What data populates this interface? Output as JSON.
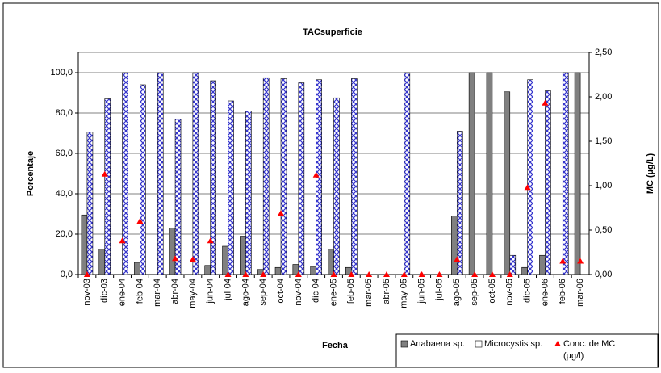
{
  "chart_data": {
    "type": "bar",
    "title": "TACsuperficie",
    "x_label": "Fecha",
    "y_label": "Porcentaje",
    "y2_label": "MC (µg/L)",
    "categories": [
      "nov-03",
      "dic-03",
      "ene-04",
      "feb-04",
      "mar-04",
      "abr-04",
      "may-04",
      "jun-04",
      "jul-04",
      "ago-04",
      "sep-04",
      "oct-04",
      "nov-04",
      "dic-04",
      "ene-05",
      "feb-05",
      "mar-05",
      "abr-05",
      "may-05",
      "jun-05",
      "jul-05",
      "ago-05",
      "sep-05",
      "oct-05",
      "nov-05",
      "dic-05",
      "ene-06",
      "feb-06",
      "mar-06"
    ],
    "series": [
      {
        "name": "Anabaena sp.",
        "color": "#808080",
        "values": [
          29.5,
          12.5,
          0,
          6,
          0,
          23,
          0,
          4.5,
          14,
          19,
          2.5,
          3.5,
          5,
          4,
          12.5,
          3.5,
          0,
          0,
          0,
          0,
          0,
          29,
          100,
          100,
          90.5,
          3.5,
          9.5,
          0,
          100
        ]
      },
      {
        "name": "Microcystis sp.",
        "color": "#3333cc",
        "values": [
          70.5,
          87,
          100,
          94,
          100,
          77,
          100,
          96,
          86,
          81,
          97.5,
          97,
          95,
          96.5,
          87.5,
          97,
          0,
          0,
          100,
          0,
          0,
          71,
          0,
          0,
          9.5,
          96.5,
          91,
          100,
          0
        ]
      },
      {
        "name": "Conc. de MC (µg/l)",
        "color": "#ff0000",
        "type": "scatter",
        "axis": "y2",
        "values": [
          0,
          1.13,
          0.38,
          0.6,
          null,
          0.18,
          0.17,
          0.38,
          0,
          0,
          0,
          0.69,
          0,
          1.12,
          0,
          0,
          0,
          0,
          0,
          0,
          0,
          0.17,
          0,
          0,
          0,
          0.98,
          1.93,
          0.15,
          0.15
        ]
      }
    ],
    "ylim": [
      0,
      110
    ],
    "yticks": [
      {
        "value": 0,
        "label": "0,0"
      },
      {
        "value": 20,
        "label": "20,0"
      },
      {
        "value": 40,
        "label": "40,0"
      },
      {
        "value": 60,
        "label": "60,0"
      },
      {
        "value": 80,
        "label": "80,0"
      },
      {
        "value": 100,
        "label": "100,0"
      }
    ],
    "y2lim": [
      0,
      2.5
    ],
    "y2ticks": [
      {
        "value": 0,
        "label": "0,00"
      },
      {
        "value": 0.5,
        "label": "0,50"
      },
      {
        "value": 1,
        "label": "1,00"
      },
      {
        "value": 1.5,
        "label": "1,50"
      },
      {
        "value": 2,
        "label": "2,00"
      },
      {
        "value": 2.5,
        "label": "2,50"
      }
    ],
    "grid": true,
    "legend": "bottom-right"
  }
}
